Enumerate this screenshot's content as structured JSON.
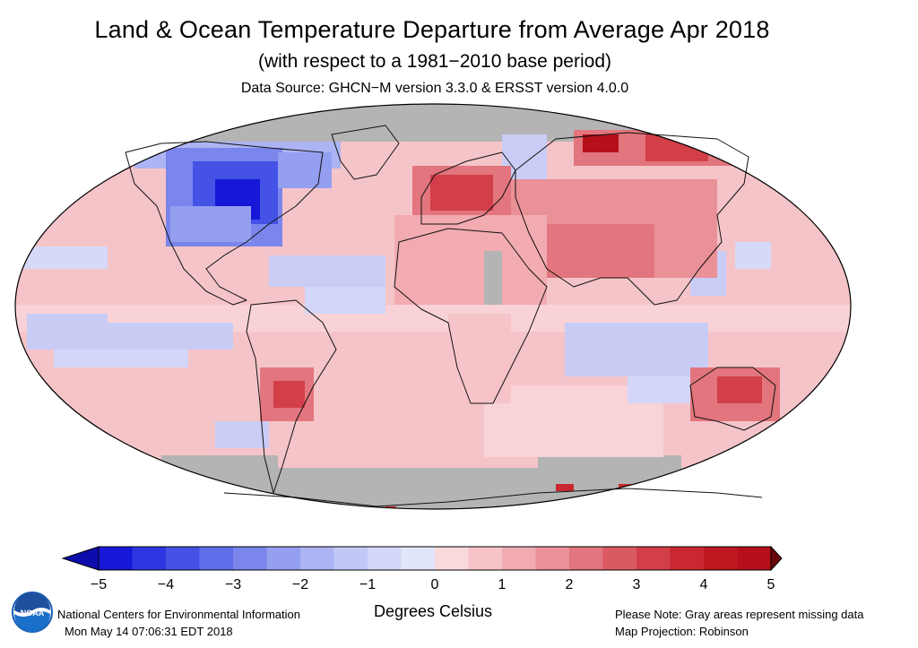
{
  "header": {
    "title": "Land & Ocean Temperature Departure from Average Apr 2018",
    "subtitle": "(with respect to a 1981−2010 base period)",
    "source": "Data Source: GHCN−M version 3.3.0 & ERSST version 4.0.0"
  },
  "legend": {
    "units": "Degrees Celsius",
    "ticks": [
      "−5",
      "−4",
      "−3",
      "−2",
      "−1",
      "0",
      "1",
      "2",
      "3",
      "4",
      "5"
    ],
    "min": -5,
    "max": 5,
    "step": 0.5,
    "colors": [
      "#1717d8",
      "#2d36e0",
      "#4452e6",
      "#5f6de9",
      "#7a86ec",
      "#959ff0",
      "#adb4f3",
      "#c2c8f6",
      "#d3d8f8",
      "#e2e6fb",
      "#fad9dc",
      "#f6c4c8",
      "#f1abb1",
      "#ea9097",
      "#e2757d",
      "#da5a62",
      "#d23f48",
      "#c92830",
      "#c01820",
      "#b5101a"
    ],
    "extend_low_color": "#0d0dae",
    "extend_high_color": "#6a0808"
  },
  "map": {
    "projection": "Robinson",
    "missing_color": "#b4b4b4",
    "ocean_default_color": "#f5c4c8"
  },
  "footer": {
    "org": "National Centers for Environmental Information",
    "timestamp": "Mon May 14 07:06:31 EDT 2018",
    "note": "Please Note: Gray areas represent missing data",
    "projection": "Map Projection: Robinson"
  },
  "logo": {
    "icon": "noaa-logo-icon",
    "text": "NOAA"
  }
}
